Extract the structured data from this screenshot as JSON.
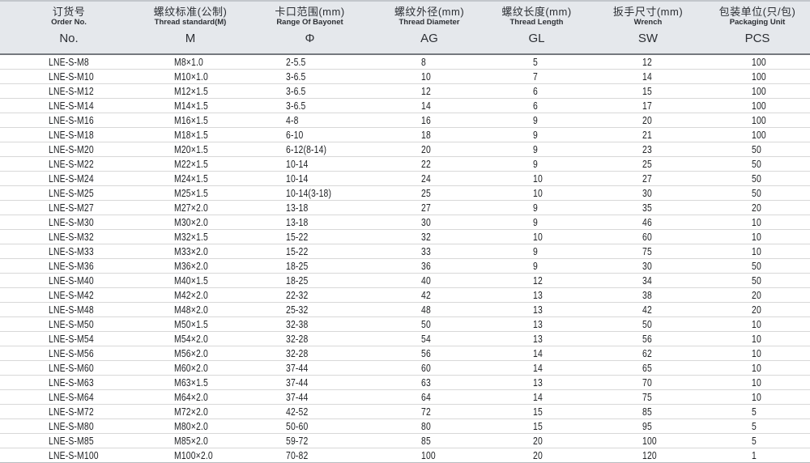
{
  "table": {
    "columns": [
      {
        "id": "order-no",
        "cn": "订货号",
        "en": "Order No.",
        "symbol": "No."
      },
      {
        "id": "thread-standard",
        "cn": "螺纹标准(公制)",
        "en": "Thread standard(M)",
        "symbol": "M"
      },
      {
        "id": "bayonet-range",
        "cn": "卡口范围(mm)",
        "en": "Range Of Bayonet",
        "symbol": "Φ"
      },
      {
        "id": "thread-diameter",
        "cn": "螺纹外径(mm)",
        "en": "Thread Diameter",
        "symbol": "AG"
      },
      {
        "id": "thread-length",
        "cn": "螺纹长度(mm)",
        "en": "Thread Length",
        "symbol": "GL"
      },
      {
        "id": "wrench-size",
        "cn": "扳手尺寸(mm)",
        "en": "Wrench",
        "symbol": "SW"
      },
      {
        "id": "packaging-unit",
        "cn": "包装单位(只/包)",
        "en": "Packaging Unit",
        "symbol": "PCS"
      }
    ],
    "rows": [
      [
        "LNE-S-M8",
        "M8×1.0",
        "2-5.5",
        "8",
        "5",
        "12",
        "100"
      ],
      [
        "LNE-S-M10",
        "M10×1.0",
        "3-6.5",
        "10",
        "7",
        "14",
        "100"
      ],
      [
        "LNE-S-M12",
        "M12×1.5",
        "3-6.5",
        "12",
        "6",
        "15",
        "100"
      ],
      [
        "LNE-S-M14",
        "M14×1.5",
        "3-6.5",
        "14",
        "6",
        "17",
        "100"
      ],
      [
        "LNE-S-M16",
        "M16×1.5",
        "4-8",
        "16",
        "9",
        "20",
        "100"
      ],
      [
        "LNE-S-M18",
        "M18×1.5",
        "6-10",
        "18",
        "9",
        "21",
        "100"
      ],
      [
        "LNE-S-M20",
        "M20×1.5",
        "6-12(8-14)",
        "20",
        "9",
        "23",
        "50"
      ],
      [
        "LNE-S-M22",
        "M22×1.5",
        "10-14",
        "22",
        "9",
        "25",
        "50"
      ],
      [
        "LNE-S-M24",
        "M24×1.5",
        "10-14",
        "24",
        "10",
        "27",
        "50"
      ],
      [
        "LNE-S-M25",
        "M25×1.5",
        "10-14(3-18)",
        "25",
        "10",
        "30",
        "50"
      ],
      [
        "LNE-S-M27",
        "M27×2.0",
        "13-18",
        "27",
        "9",
        "35",
        "20"
      ],
      [
        "LNE-S-M30",
        "M30×2.0",
        "13-18",
        "30",
        "9",
        "46",
        "10"
      ],
      [
        "LNE-S-M32",
        "M32×1.5",
        "15-22",
        "32",
        "10",
        "60",
        "10"
      ],
      [
        "LNE-S-M33",
        "M33×2.0",
        "15-22",
        "33",
        "9",
        "75",
        "10"
      ],
      [
        "LNE-S-M36",
        "M36×2.0",
        "18-25",
        "36",
        "9",
        "30",
        "50"
      ],
      [
        "LNE-S-M40",
        "M40×1.5",
        "18-25",
        "40",
        "12",
        "34",
        "50"
      ],
      [
        "LNE-S-M42",
        "M42×2.0",
        "22-32",
        "42",
        "13",
        "38",
        "20"
      ],
      [
        "LNE-S-M48",
        "M48×2.0",
        "25-32",
        "48",
        "13",
        "42",
        "20"
      ],
      [
        "LNE-S-M50",
        "M50×1.5",
        "32-38",
        "50",
        "13",
        "50",
        "10"
      ],
      [
        "LNE-S-M54",
        "M54×2.0",
        "32-28",
        "54",
        "13",
        "56",
        "10"
      ],
      [
        "LNE-S-M56",
        "M56×2.0",
        "32-28",
        "56",
        "14",
        "62",
        "10"
      ],
      [
        "LNE-S-M60",
        "M60×2.0",
        "37-44",
        "60",
        "14",
        "65",
        "10"
      ],
      [
        "LNE-S-M63",
        "M63×1.5",
        "37-44",
        "63",
        "13",
        "70",
        "10"
      ],
      [
        "LNE-S-M64",
        "M64×2.0",
        "37-44",
        "64",
        "14",
        "75",
        "10"
      ],
      [
        "LNE-S-M72",
        "M72×2.0",
        "42-52",
        "72",
        "15",
        "85",
        "5"
      ],
      [
        "LNE-S-M80",
        "M80×2.0",
        "50-60",
        "80",
        "15",
        "95",
        "5"
      ],
      [
        "LNE-S-M85",
        "M85×2.0",
        "59-72",
        "85",
        "20",
        "100",
        "5"
      ],
      [
        "LNE-S-M100",
        "M100×2.0",
        "70-82",
        "100",
        "20",
        "120",
        "1"
      ]
    ]
  },
  "colors": {
    "header_background": "#e5e8ec",
    "header_divider": "#75797f",
    "row_divider": "#d8d8d8",
    "text": "#222427"
  }
}
